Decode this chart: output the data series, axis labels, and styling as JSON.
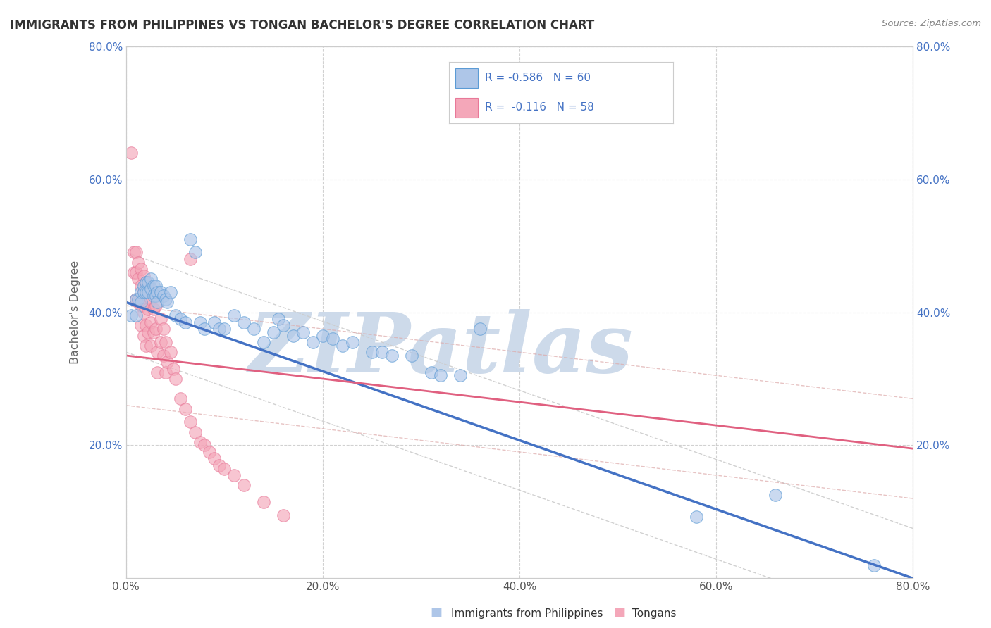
{
  "title": "IMMIGRANTS FROM PHILIPPINES VS TONGAN BACHELOR'S DEGREE CORRELATION CHART",
  "source": "Source: ZipAtlas.com",
  "ylabel": "Bachelor's Degree",
  "xlabel_blue": "Immigrants from Philippines",
  "xlabel_pink": "Tongans",
  "legend_blue_R": "-0.586",
  "legend_blue_N": "60",
  "legend_pink_R": "-0.116",
  "legend_pink_N": "58",
  "xlim": [
    0.0,
    0.8
  ],
  "ylim": [
    0.0,
    0.8
  ],
  "xtick_labels": [
    "0.0%",
    "20.0%",
    "40.0%",
    "60.0%",
    "80.0%"
  ],
  "xtick_values": [
    0.0,
    0.2,
    0.4,
    0.6,
    0.8
  ],
  "ytick_labels": [
    "20.0%",
    "40.0%",
    "60.0%",
    "80.0%"
  ],
  "ytick_values": [
    0.2,
    0.4,
    0.6,
    0.8
  ],
  "color_blue_fill": "#aec6e8",
  "color_blue_edge": "#5b9bd5",
  "color_blue_line": "#4472c4",
  "color_pink_fill": "#f4a7b9",
  "color_pink_edge": "#e87898",
  "color_pink_line": "#e06080",
  "color_grid": "#cccccc",
  "color_watermark": "#cddaea",
  "blue_scatter_x": [
    0.005,
    0.01,
    0.01,
    0.012,
    0.015,
    0.015,
    0.018,
    0.018,
    0.02,
    0.02,
    0.022,
    0.022,
    0.025,
    0.025,
    0.028,
    0.028,
    0.03,
    0.03,
    0.032,
    0.032,
    0.035,
    0.038,
    0.04,
    0.042,
    0.045,
    0.05,
    0.055,
    0.06,
    0.065,
    0.07,
    0.075,
    0.08,
    0.09,
    0.095,
    0.1,
    0.11,
    0.12,
    0.13,
    0.14,
    0.15,
    0.155,
    0.16,
    0.17,
    0.18,
    0.19,
    0.2,
    0.21,
    0.22,
    0.23,
    0.25,
    0.26,
    0.27,
    0.29,
    0.31,
    0.32,
    0.34,
    0.36,
    0.58,
    0.66,
    0.76
  ],
  "blue_scatter_y": [
    0.395,
    0.42,
    0.395,
    0.42,
    0.43,
    0.415,
    0.44,
    0.43,
    0.445,
    0.43,
    0.445,
    0.43,
    0.45,
    0.435,
    0.44,
    0.425,
    0.44,
    0.425,
    0.43,
    0.415,
    0.43,
    0.425,
    0.42,
    0.415,
    0.43,
    0.395,
    0.39,
    0.385,
    0.51,
    0.49,
    0.385,
    0.375,
    0.385,
    0.375,
    0.375,
    0.395,
    0.385,
    0.375,
    0.355,
    0.37,
    0.39,
    0.38,
    0.365,
    0.37,
    0.355,
    0.365,
    0.36,
    0.35,
    0.355,
    0.34,
    0.34,
    0.335,
    0.335,
    0.31,
    0.305,
    0.305,
    0.375,
    0.093,
    0.125,
    0.02
  ],
  "pink_scatter_x": [
    0.005,
    0.008,
    0.008,
    0.01,
    0.01,
    0.01,
    0.012,
    0.012,
    0.012,
    0.015,
    0.015,
    0.015,
    0.015,
    0.018,
    0.018,
    0.018,
    0.018,
    0.02,
    0.02,
    0.02,
    0.02,
    0.022,
    0.022,
    0.022,
    0.025,
    0.025,
    0.025,
    0.028,
    0.028,
    0.03,
    0.03,
    0.032,
    0.032,
    0.035,
    0.035,
    0.038,
    0.038,
    0.04,
    0.04,
    0.042,
    0.045,
    0.048,
    0.05,
    0.055,
    0.06,
    0.065,
    0.07,
    0.075,
    0.08,
    0.085,
    0.09,
    0.095,
    0.1,
    0.11,
    0.12,
    0.14,
    0.16,
    0.065
  ],
  "pink_scatter_y": [
    0.64,
    0.49,
    0.46,
    0.49,
    0.46,
    0.42,
    0.475,
    0.45,
    0.415,
    0.465,
    0.44,
    0.41,
    0.38,
    0.455,
    0.43,
    0.4,
    0.365,
    0.445,
    0.415,
    0.38,
    0.35,
    0.44,
    0.405,
    0.37,
    0.42,
    0.385,
    0.35,
    0.405,
    0.37,
    0.41,
    0.375,
    0.34,
    0.31,
    0.39,
    0.355,
    0.375,
    0.335,
    0.355,
    0.31,
    0.325,
    0.34,
    0.315,
    0.3,
    0.27,
    0.255,
    0.235,
    0.22,
    0.205,
    0.2,
    0.19,
    0.18,
    0.17,
    0.165,
    0.155,
    0.14,
    0.115,
    0.095,
    0.48
  ],
  "blue_trend_x0": 0.0,
  "blue_trend_y0": 0.415,
  "blue_trend_x1": 0.8,
  "blue_trend_y1": 0.0,
  "pink_trend_x0": 0.0,
  "pink_trend_y0": 0.335,
  "pink_trend_x1": 0.8,
  "pink_trend_y1": 0.195
}
